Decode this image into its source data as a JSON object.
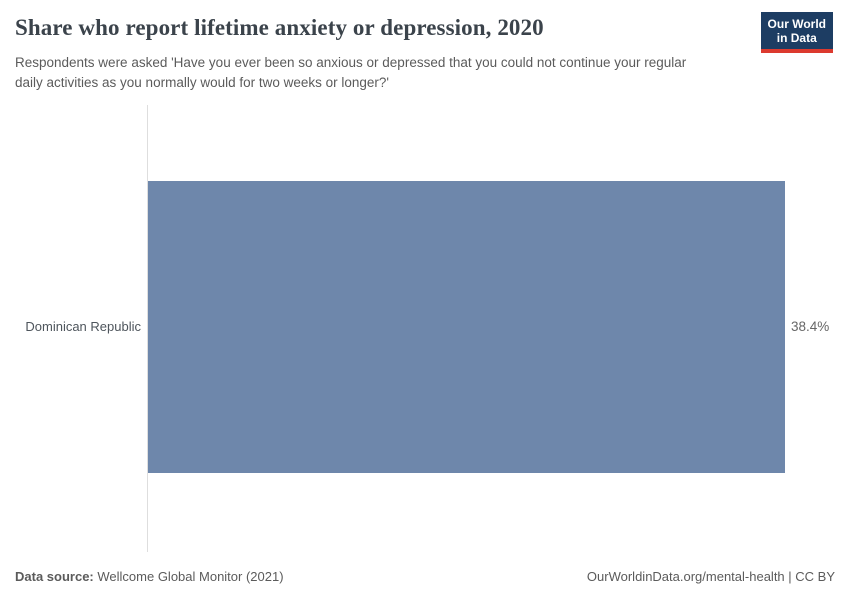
{
  "header": {
    "title": "Share who report lifetime anxiety or depression, 2020",
    "subtitle": "Respondents were asked 'Have you ever been so anxious or depressed that you could not continue your regular daily activities as you normally would for two weeks or longer?'",
    "logo": {
      "line1": "Our World",
      "line2": "in Data",
      "bg_color": "#1d3d63",
      "accent_color": "#dc3a2f"
    }
  },
  "chart_data": {
    "type": "bar",
    "orientation": "horizontal",
    "title": "Share who report lifetime anxiety or depression, 2020",
    "categories": [
      "Dominican Republic"
    ],
    "values": [
      38.4
    ],
    "value_labels": [
      "38.4%"
    ],
    "xlabel": "",
    "ylabel": "",
    "xlim": [
      0,
      38.4
    ],
    "bar_color": "#6e87ab",
    "axis_line_color": "#dedede",
    "grid": false,
    "legend": "none"
  },
  "footer": {
    "data_source_label": "Data source:",
    "data_source_value": "Wellcome Global Monitor (2021)",
    "attribution": "OurWorldinData.org/mental-health | CC BY"
  }
}
